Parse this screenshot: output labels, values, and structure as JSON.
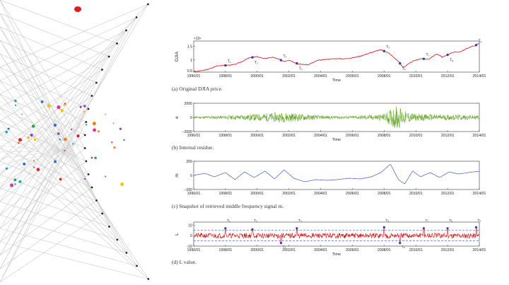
{
  "figure": {
    "panels": [
      {
        "caption": "(a) Original DJIA price.",
        "ylabel": "DJIA",
        "xlabel": "Time",
        "exponent": "×10⁴"
      },
      {
        "caption": "(b) Internal residue.",
        "ylabel": "e",
        "xlabel": "Time"
      },
      {
        "caption": "(c) Snapshot of retrieved middle frequency signal m.",
        "ylabel": "m",
        "xlabel": ""
      },
      {
        "caption": "(d) L value.",
        "ylabel": "L",
        "xlabel": "Time"
      }
    ]
  },
  "colors": {
    "price": "#d0101a",
    "residue": "#6aa832",
    "signal": "#3b5bbf",
    "lvalue": "#cc1010",
    "marker": "#3a3aa8",
    "threshold": "#3050c0"
  },
  "decor": {
    "icon": "network-graph-decoration"
  },
  "chart_data": [
    {
      "type": "line",
      "x_ticks": [
        "1996/01",
        "1998/01",
        "2000/01",
        "2002/01",
        "2004/01",
        "2006/01",
        "2008/01",
        "2010/01",
        "2012/01",
        "2014/01"
      ],
      "x_range": [
        1996.0,
        2014.0
      ],
      "y_ticks": [
        "0.6",
        "1",
        "1.5"
      ],
      "ylim": [
        0.55,
        1.7
      ],
      "series": [
        {
          "values_x": [
            1996.0,
            1996.5,
            1997.0,
            1997.5,
            1998.0,
            1998.6,
            1999.0,
            1999.5,
            2000.0,
            2000.5,
            2001.0,
            2001.7,
            2002.0,
            2002.6,
            2003.2,
            2003.8,
            2004.5,
            2005.0,
            2005.5,
            2006.0,
            2006.5,
            2007.0,
            2007.8,
            2008.3,
            2008.9,
            2009.2,
            2009.8,
            2010.3,
            2010.8,
            2011.3,
            2011.7,
            2012.3,
            2012.8,
            2013.3,
            2013.8,
            2014.0
          ],
          "values_y": [
            0.56,
            0.6,
            0.67,
            0.79,
            0.8,
            0.83,
            0.93,
            1.08,
            1.12,
            1.05,
            1.1,
            0.95,
            1.0,
            0.85,
            0.82,
            0.98,
            1.03,
            1.05,
            1.04,
            1.08,
            1.14,
            1.24,
            1.38,
            1.25,
            0.95,
            0.72,
            0.95,
            1.05,
            1.03,
            1.22,
            1.1,
            1.28,
            1.3,
            1.45,
            1.55,
            1.62
          ]
        }
      ],
      "marker_labels": [
        "T₁",
        "T₂",
        "T₃",
        "T₄",
        "T₅",
        "T₆",
        "T₇",
        "T₈",
        "T₉"
      ],
      "marker_x": [
        1998.0,
        1999.7,
        2001.5,
        2002.5,
        2008.0,
        2009.0,
        2010.5,
        2012.0,
        2013.8
      ]
    },
    {
      "type": "line",
      "x_ticks": [
        "1996/01",
        "1998/01",
        "2000/01",
        "2002/01",
        "2004/01",
        "2006/01",
        "2008/01",
        "2010/01",
        "2012/01",
        "2014/01"
      ],
      "x_range": [
        1996.0,
        2014.0
      ],
      "y_ticks": [
        "2000",
        "0",
        "−2000"
      ],
      "ylim": [
        -2000,
        2000
      ],
      "series": [
        {
          "amplitude_by_year_x": [
            1996,
            1998,
            2000,
            2001,
            2002,
            2003,
            2004,
            2006,
            2008,
            2008.8,
            2009.3,
            2010,
            2012,
            2014
          ],
          "amplitude_by_year_y": [
            150,
            250,
            500,
            650,
            700,
            450,
            250,
            200,
            500,
            1800,
            900,
            500,
            400,
            300
          ]
        }
      ]
    },
    {
      "type": "line",
      "x_ticks": [
        "1996/01",
        "1998/01",
        "2000/01",
        "2002/01",
        "2004/01",
        "2006/01",
        "2008/01",
        "2010/01",
        "2012/01",
        "2014/01"
      ],
      "x_range": [
        1996.0,
        2014.0
      ],
      "y_ticks": [
        "200",
        "0",
        "−200"
      ],
      "ylim": [
        -200,
        200
      ],
      "series": [
        {
          "values_x": [
            1996,
            1996.7,
            1997.3,
            1998.0,
            1998.6,
            1999.2,
            1999.8,
            2000.5,
            2001.1,
            2001.7,
            2002.3,
            2003.0,
            2003.7,
            2004.4,
            2005.0,
            2005.8,
            2006.5,
            2007.2,
            2007.8,
            2008.4,
            2008.9,
            2009.3,
            2009.8,
            2010.3,
            2010.9,
            2011.5,
            2012.1,
            2012.7,
            2013.3,
            2014.0
          ],
          "values_y": [
            0,
            30,
            -20,
            40,
            -60,
            50,
            -30,
            60,
            -50,
            80,
            -40,
            -90,
            -60,
            -70,
            -60,
            -40,
            -50,
            -20,
            40,
            160,
            -60,
            -120,
            60,
            -20,
            40,
            -30,
            50,
            20,
            40,
            60
          ]
        }
      ]
    },
    {
      "type": "line",
      "x_ticks": [
        "1996/01",
        "1998/01",
        "2000/01",
        "2002/01",
        "2004/01",
        "2006/01",
        "2008/01",
        "2010/01",
        "2012/01",
        "2014/01"
      ],
      "x_range": [
        1996.0,
        2014.0
      ],
      "y_ticks": [
        "10",
        "0",
        "−10"
      ],
      "ylim": [
        -10,
        13
      ],
      "thresholds": [
        5,
        -5
      ],
      "marker_labels": [
        "T₁",
        "T₂",
        "T₃",
        "T₄",
        "T₅",
        "T₆",
        "T₇",
        "T₈",
        "T₉"
      ],
      "marker_x": [
        1998.0,
        1999.7,
        2001.5,
        2002.5,
        2008.0,
        2009.0,
        2010.5,
        2012.0,
        2013.8
      ],
      "spike_x": [
        1998.0,
        1999.7,
        2001.5,
        2002.5,
        2008.0,
        2009.0,
        2010.5,
        2012.0,
        2013.8
      ],
      "spike_y": [
        7,
        6,
        -7,
        7,
        8,
        -7,
        7,
        7,
        8
      ]
    }
  ]
}
